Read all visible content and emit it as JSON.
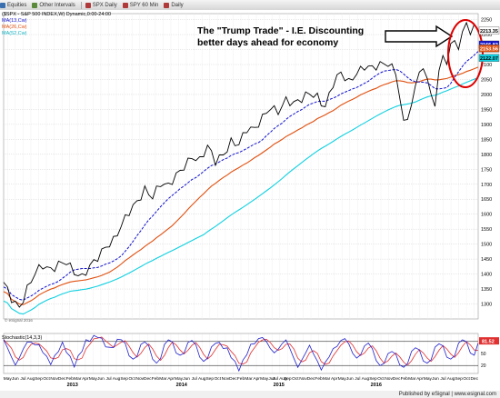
{
  "toolbar": {
    "items": [
      {
        "icon": "equities-icon",
        "label": "Equities",
        "color": "#3a6fb0"
      },
      {
        "icon": "intervals-icon",
        "label": "Other Intervals",
        "color": "#5a8a3a"
      },
      {
        "icon": "chart-icon",
        "label": "SPX Daily",
        "color": "#b03a3a"
      },
      {
        "icon": "chart-icon",
        "label": "SPY 60 Min",
        "color": "#b03a3a"
      },
      {
        "icon": "chart-icon",
        "label": "Daily",
        "color": "#b03a3a"
      }
    ]
  },
  "chart_title_line": "($SPX - S&P 500 INDEX,W) Dynamic,0:00-24:00",
  "legend": [
    {
      "label": "MA(13,Cw)",
      "color": "#1010cc"
    },
    {
      "label": "MA(26,Cw)",
      "color": "#e05010"
    },
    {
      "label": "MA(52,Cw)",
      "color": "#10d0e0"
    }
  ],
  "annotation": {
    "line1": "The \"Trump Trade\" - I.E. Discounting",
    "line2": "better days ahead for economy"
  },
  "copyright": "© eSignal 2016",
  "stoch_label": "Stochastic(14,3,3)",
  "footer": "Published by eSignal | www.esignal.com",
  "price_tags": [
    {
      "value": "2213.35",
      "bg": "#ffffff",
      "fg": "#000000"
    },
    {
      "value": "2166.83",
      "bg": "#1010cc",
      "fg": "#ffffff"
    },
    {
      "value": "2153.56",
      "bg": "#e05010",
      "fg": "#ffffff"
    },
    {
      "value": "2122.07",
      "bg": "#10d0e0",
      "fg": "#000000"
    }
  ],
  "stoch_tag": {
    "value": "81.52",
    "bg": "#e03030",
    "fg": "#ffffff"
  },
  "colors": {
    "price": "#000000",
    "ma13": "#1010cc",
    "ma26": "#e05010",
    "ma52": "#10d0e0",
    "stochK": "#2020cc",
    "stochD": "#e03030",
    "ellipse": "#dd0000",
    "grid": "#d0d0d0"
  },
  "chart_data": {
    "type": "line",
    "ylim": [
      1250,
      2270
    ],
    "y_ticks": [
      1300,
      1350,
      1400,
      1450,
      1500,
      1550,
      1600,
      1650,
      1700,
      1750,
      1800,
      1850,
      1900,
      1950,
      2000,
      2050,
      2100,
      2150,
      2200,
      2250
    ],
    "x_tick_labels": [
      "May",
      "Jun",
      "Jul",
      "Aug",
      "Sep",
      "Oct",
      "Nov",
      "Dec",
      "Feb",
      "Mar",
      "Apr",
      "May",
      "Jun",
      "Jul",
      "Aug",
      "Sep",
      "Oct",
      "Nov",
      "Dec",
      "Feb",
      "Mar",
      "Apr",
      "May",
      "Jun",
      "Jul",
      "Aug",
      "Sep",
      "Oct",
      "Nov",
      "Dec",
      "Feb",
      "Mar",
      "Apr",
      "May",
      "Jun",
      "Jul Aug",
      "Sep",
      "Oct",
      "Nov",
      "Dec",
      "Feb",
      "Mar",
      "Apr",
      "May",
      "Jun",
      "Jul",
      "Aug",
      "Sep",
      "Oct",
      "Nov",
      "Dec",
      "Feb",
      "Mar",
      "Apr",
      "May",
      "Jun",
      "Jul",
      "Aug",
      "Sep",
      "Oct",
      "Dec"
    ],
    "year_labels": [
      "2013",
      "2014",
      "2015",
      "2016"
    ],
    "n_weeks": 122,
    "anchors": [
      [
        0,
        1365
      ],
      [
        2,
        1320
      ],
      [
        4,
        1295
      ],
      [
        6,
        1355
      ],
      [
        8,
        1400
      ],
      [
        10,
        1420
      ],
      [
        12,
        1410
      ],
      [
        14,
        1440
      ],
      [
        16,
        1450
      ],
      [
        18,
        1405
      ],
      [
        20,
        1380
      ],
      [
        22,
        1420
      ],
      [
        24,
        1460
      ],
      [
        26,
        1500
      ],
      [
        28,
        1515
      ],
      [
        30,
        1555
      ],
      [
        32,
        1600
      ],
      [
        34,
        1640
      ],
      [
        36,
        1690
      ],
      [
        38,
        1665
      ],
      [
        40,
        1700
      ],
      [
        42,
        1685
      ],
      [
        44,
        1725
      ],
      [
        46,
        1765
      ],
      [
        48,
        1800
      ],
      [
        50,
        1780
      ],
      [
        52,
        1820
      ],
      [
        54,
        1770
      ],
      [
        56,
        1800
      ],
      [
        58,
        1850
      ],
      [
        60,
        1840
      ],
      [
        62,
        1880
      ],
      [
        64,
        1875
      ],
      [
        66,
        1920
      ],
      [
        68,
        1965
      ],
      [
        70,
        1950
      ],
      [
        72,
        1980
      ],
      [
        74,
        1960
      ],
      [
        76,
        1980
      ],
      [
        78,
        2010
      ],
      [
        80,
        2000
      ],
      [
        82,
        1960
      ],
      [
        84,
        2030
      ],
      [
        86,
        2065
      ],
      [
        88,
        2040
      ],
      [
        90,
        2080
      ],
      [
        92,
        2100
      ],
      [
        94,
        2085
      ],
      [
        96,
        2090
      ],
      [
        98,
        2100
      ],
      [
        100,
        2080
      ],
      [
        101,
        2000
      ],
      [
        102,
        1910
      ],
      [
        104,
        1960
      ],
      [
        106,
        2080
      ],
      [
        108,
        2050
      ],
      [
        110,
        1990
      ],
      [
        112,
        2060
      ],
      [
        114,
        2110
      ],
      [
        116,
        2100
      ],
      [
        117,
        2010
      ],
      [
        118,
        1890
      ],
      [
        119,
        1880
      ],
      [
        120,
        1860
      ],
      [
        121,
        1920
      ]
    ],
    "stoch_anchors": [
      [
        0,
        85
      ],
      [
        3,
        20
      ],
      [
        6,
        80
      ],
      [
        9,
        70
      ],
      [
        12,
        25
      ],
      [
        15,
        75
      ],
      [
        18,
        20
      ],
      [
        21,
        80
      ],
      [
        24,
        95
      ],
      [
        27,
        60
      ],
      [
        30,
        90
      ],
      [
        33,
        30
      ],
      [
        36,
        85
      ],
      [
        39,
        20
      ],
      [
        42,
        90
      ],
      [
        45,
        40
      ],
      [
        48,
        88
      ],
      [
        51,
        25
      ],
      [
        54,
        80
      ],
      [
        57,
        60
      ],
      [
        60,
        10
      ],
      [
        63,
        70
      ],
      [
        66,
        92
      ],
      [
        69,
        50
      ],
      [
        72,
        85
      ],
      [
        75,
        15
      ],
      [
        78,
        70
      ],
      [
        81,
        10
      ],
      [
        84,
        60
      ],
      [
        87,
        90
      ],
      [
        90,
        35
      ],
      [
        93,
        80
      ],
      [
        96,
        15
      ],
      [
        99,
        60
      ],
      [
        102,
        10
      ],
      [
        105,
        70
      ],
      [
        108,
        20
      ],
      [
        111,
        80
      ],
      [
        114,
        30
      ],
      [
        117,
        90
      ],
      [
        120,
        40
      ],
      [
        121,
        82
      ]
    ],
    "stoch_ylim": [
      0,
      100
    ]
  }
}
